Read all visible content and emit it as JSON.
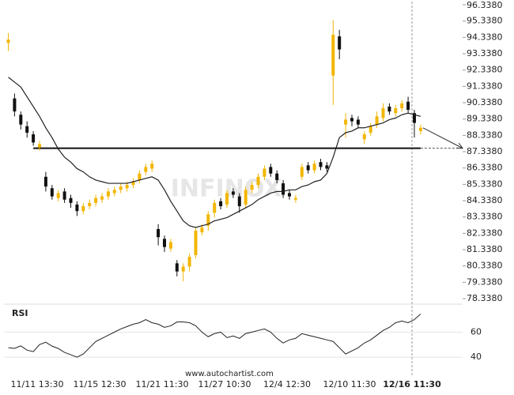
{
  "chart_data": {
    "type": "candlestick",
    "categories": [
      null,
      null,
      null,
      null,
      null,
      "11/11 13:30",
      null,
      null,
      null,
      null,
      null,
      null,
      null,
      null,
      null,
      "11/15 12:30",
      null,
      null,
      null,
      null,
      null,
      null,
      null,
      null,
      null,
      "11/21 11:30",
      null,
      null,
      null,
      null,
      null,
      null,
      null,
      null,
      null,
      "11/27 10:30",
      null,
      null,
      null,
      null,
      null,
      null,
      null,
      null,
      null,
      "12/4 12:30",
      null,
      null,
      null,
      null,
      null,
      null,
      null,
      null,
      null,
      "12/10 11:30",
      null,
      null,
      null,
      null,
      null,
      null,
      null,
      null,
      null,
      "12/16 11:30",
      null
    ],
    "open": [
      94.0,
      90.6,
      89.6,
      88.9,
      88.4,
      87.6,
      85.8,
      85.1,
      84.5,
      84.9,
      84.5,
      84.1,
      83.7,
      84.0,
      84.2,
      84.4,
      84.6,
      84.8,
      85.0,
      85.1,
      85.3,
      85.6,
      86.1,
      86.3,
      82.6,
      82.0,
      81.4,
      80.5,
      80.0,
      80.3,
      81.0,
      82.4,
      82.8,
      83.6,
      84.3,
      84.1,
      84.9,
      84.6,
      84.1,
      85.0,
      85.3,
      85.8,
      86.4,
      86.0,
      85.4,
      84.8,
      84.4,
      85.8,
      86.5,
      86.2,
      86.7,
      86.5,
      92.0,
      94.4,
      89.0,
      89.4,
      89.3,
      88.1,
      88.5,
      89.0,
      89.4,
      90.1,
      89.7,
      90.0,
      90.4,
      89.7,
      88.6
    ],
    "high": [
      94.6,
      90.9,
      89.8,
      89.2,
      88.6,
      88.0,
      86.1,
      85.3,
      85.0,
      85.1,
      84.7,
      84.3,
      84.2,
      84.4,
      84.7,
      84.8,
      85.1,
      85.2,
      85.4,
      85.5,
      85.7,
      86.2,
      86.6,
      86.8,
      82.9,
      82.2,
      82.0,
      80.7,
      80.5,
      81.1,
      82.7,
      82.9,
      83.7,
      84.4,
      84.5,
      85.0,
      85.1,
      84.8,
      85.2,
      85.5,
      86.0,
      86.5,
      86.6,
      86.2,
      85.6,
      85.0,
      84.7,
      86.6,
      86.7,
      86.8,
      86.9,
      86.7,
      95.4,
      94.8,
      89.7,
      89.6,
      89.5,
      88.6,
      89.1,
      89.8,
      90.3,
      90.3,
      90.2,
      90.5,
      90.7,
      89.9,
      89.0
    ],
    "low": [
      93.5,
      89.5,
      88.7,
      88.2,
      87.7,
      87.4,
      84.9,
      84.4,
      84.3,
      84.2,
      83.9,
      83.4,
      83.5,
      83.8,
      84.0,
      84.2,
      84.4,
      84.6,
      84.8,
      84.9,
      85.1,
      85.4,
      85.9,
      86.1,
      81.6,
      81.2,
      81.2,
      79.7,
      79.4,
      80.0,
      80.8,
      82.2,
      82.5,
      83.3,
      83.8,
      83.9,
      84.5,
      83.6,
      83.9,
      84.8,
      85.1,
      85.6,
      85.8,
      85.4,
      84.5,
      84.4,
      84.2,
      85.6,
      86.0,
      86.0,
      86.2,
      86.1,
      90.2,
      93.0,
      88.2,
      88.9,
      88.8,
      87.8,
      88.3,
      88.8,
      89.2,
      89.6,
      89.5,
      89.8,
      89.7,
      88.2,
      88.4
    ],
    "close": [
      94.2,
      89.8,
      89.0,
      88.5,
      87.9,
      87.8,
      85.2,
      84.6,
      84.8,
      84.4,
      84.2,
      83.7,
      84.0,
      84.2,
      84.5,
      84.6,
      84.9,
      85.0,
      85.2,
      85.3,
      85.5,
      86.0,
      86.4,
      86.6,
      82.1,
      81.5,
      81.8,
      80.0,
      80.3,
      80.9,
      82.5,
      82.7,
      83.5,
      84.2,
      84.0,
      84.8,
      84.7,
      84.0,
      85.0,
      85.3,
      85.8,
      86.3,
      86.0,
      85.6,
      84.7,
      84.6,
      84.5,
      86.4,
      86.2,
      86.6,
      86.4,
      86.3,
      94.5,
      93.6,
      89.3,
      89.2,
      89.0,
      88.4,
      88.9,
      89.5,
      90.0,
      89.8,
      90.0,
      90.3,
      89.9,
      89.1,
      88.8
    ],
    "up_color": "#f2b600",
    "down_color": "#111111",
    "ylim": [
      78.338,
      96.338
    ],
    "yticks": [
      {
        "value": 78.338,
        "label": "78.3380"
      },
      {
        "value": 79.338,
        "label": "79.3380"
      },
      {
        "value": 80.338,
        "label": "80.3380"
      },
      {
        "value": 81.338,
        "label": "81.3380"
      },
      {
        "value": 82.338,
        "label": "82.3380"
      },
      {
        "value": 83.338,
        "label": "83.3380"
      },
      {
        "value": 84.338,
        "label": "84.3380"
      },
      {
        "value": 85.338,
        "label": "85.3380"
      },
      {
        "value": 86.338,
        "label": "86.3380"
      },
      {
        "value": 87.338,
        "label": "87.3380"
      },
      {
        "value": 88.338,
        "label": "88.3380"
      },
      {
        "value": 89.338,
        "label": "89.3380"
      },
      {
        "value": 90.338,
        "label": "90.3380"
      },
      {
        "value": 91.338,
        "label": "91.3380"
      },
      {
        "value": 92.338,
        "label": "92.3380"
      },
      {
        "value": 93.338,
        "label": "93.3380"
      },
      {
        "value": 94.338,
        "label": "94.3380"
      },
      {
        "value": 95.338,
        "label": "95.3380"
      },
      {
        "value": 96.338,
        "label": "96.3380"
      }
    ],
    "moving_average": {
      "color": "#222222",
      "values": [
        91.9,
        91.6,
        91.3,
        90.7,
        90.1,
        89.5,
        88.8,
        88.2,
        87.5,
        87.0,
        86.7,
        86.3,
        86.1,
        85.8,
        85.6,
        85.5,
        85.4,
        85.4,
        85.4,
        85.4,
        85.5,
        85.6,
        85.7,
        85.8,
        85.6,
        85.0,
        84.3,
        83.7,
        83.1,
        82.8,
        82.7,
        82.8,
        82.9,
        83.1,
        83.2,
        83.3,
        83.5,
        83.7,
        83.9,
        84.1,
        84.4,
        84.6,
        84.8,
        84.9,
        84.9,
        85.0,
        85.0,
        85.2,
        85.3,
        85.5,
        85.6,
        86.0,
        87.0,
        88.2,
        88.5,
        88.6,
        88.8,
        88.8,
        88.9,
        89.0,
        89.1,
        89.3,
        89.4,
        89.6,
        89.7,
        89.6,
        89.5
      ]
    },
    "support": {
      "value": 87.55,
      "color": "#111111"
    },
    "rsi": {
      "title": "RSI",
      "color": "#222222",
      "ylim": [
        35,
        76
      ],
      "yticks": [
        40,
        60
      ],
      "grid": true,
      "values": [
        47.5,
        47,
        49,
        45.6,
        44.4,
        50,
        51.9,
        48.8,
        46.9,
        43.8,
        41.9,
        40,
        42.5,
        47.5,
        52.5,
        55,
        57.5,
        60,
        62.5,
        64.4,
        66.3,
        67.5,
        70,
        67.5,
        66.3,
        63.8,
        65,
        68.1,
        68.1,
        67.5,
        65,
        60,
        56.3,
        58.8,
        60,
        55.6,
        56.9,
        55,
        58.8,
        60,
        61.3,
        62.5,
        60,
        55,
        51.3,
        53.8,
        55,
        58.8,
        57.5,
        56.3,
        55,
        53.8,
        52.5,
        47.5,
        42.5,
        45,
        47.5,
        51.3,
        53.8,
        57.5,
        61.3,
        63.8,
        67.5,
        68.8,
        67.5,
        70,
        74.4
      ]
    },
    "watermark": "INFINOX",
    "source": "www.autochartist.com"
  }
}
